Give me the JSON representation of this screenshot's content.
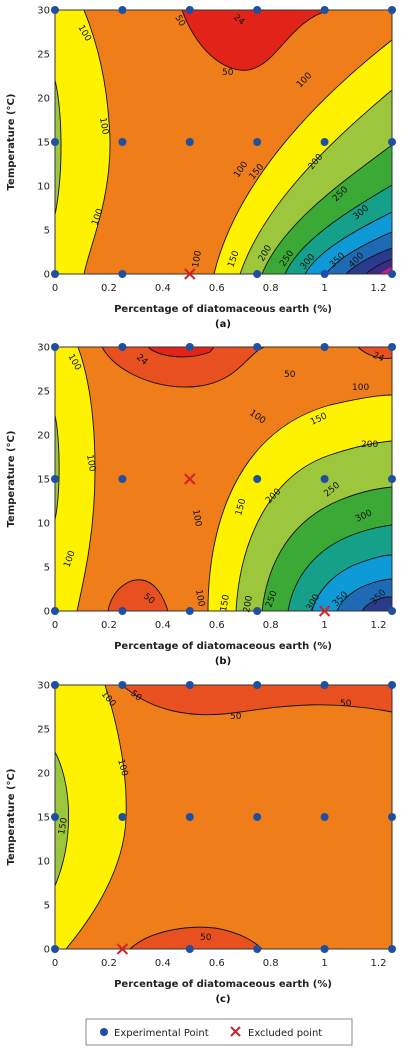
{
  "chart_data": [
    {
      "type": "contour",
      "panel": "(a)",
      "xlabel": "Percentage of diatomaceous earth (%)",
      "ylabel": "Temperature (°C)",
      "xlim": [
        0,
        1.25
      ],
      "ylim": [
        0,
        30
      ],
      "xticks": [
        "0",
        "0.2",
        "0.4",
        "0.6",
        "0.8",
        "1",
        "1.2"
      ],
      "yticks": [
        "0",
        "5",
        "10",
        "15",
        "20",
        "25",
        "30"
      ],
      "contour_levels": [
        "24",
        "50",
        "100",
        "150",
        "200",
        "250",
        "300",
        "350",
        "400"
      ],
      "experimental_points": [
        [
          0,
          0
        ],
        [
          0.25,
          0
        ],
        [
          0.75,
          0
        ],
        [
          1,
          0
        ],
        [
          1.25,
          0
        ],
        [
          0,
          15
        ],
        [
          0.25,
          15
        ],
        [
          0.5,
          15
        ],
        [
          0.75,
          15
        ],
        [
          1,
          15
        ],
        [
          1.25,
          15
        ],
        [
          0,
          30
        ],
        [
          0.25,
          30
        ],
        [
          0.5,
          30
        ],
        [
          0.75,
          30
        ],
        [
          1,
          30
        ],
        [
          1.25,
          30
        ]
      ],
      "excluded_points": [
        [
          0.5,
          0
        ]
      ]
    },
    {
      "type": "contour",
      "panel": "(b)",
      "xlabel": "Percentage of diatomaceous earth (%)",
      "ylabel": "Temperature (°C)",
      "xlim": [
        0,
        1.25
      ],
      "ylim": [
        0,
        30
      ],
      "xticks": [
        "0",
        "0.2",
        "0.4",
        "0.6",
        "0.8",
        "1",
        "1.2"
      ],
      "yticks": [
        "0",
        "5",
        "10",
        "15",
        "20",
        "25",
        "30"
      ],
      "contour_levels": [
        "24",
        "50",
        "100",
        "150",
        "200",
        "250",
        "300",
        "350"
      ],
      "experimental_points": [
        [
          0,
          0
        ],
        [
          0.25,
          0
        ],
        [
          0.5,
          0
        ],
        [
          0.75,
          0
        ],
        [
          1.25,
          0
        ],
        [
          0,
          15
        ],
        [
          0.25,
          15
        ],
        [
          0.75,
          15
        ],
        [
          1,
          15
        ],
        [
          1.25,
          15
        ],
        [
          0,
          30
        ],
        [
          0.25,
          30
        ],
        [
          0.5,
          30
        ],
        [
          0.75,
          30
        ],
        [
          1,
          30
        ],
        [
          1.25,
          30
        ]
      ],
      "excluded_points": [
        [
          0.5,
          15
        ],
        [
          1,
          0
        ]
      ]
    },
    {
      "type": "contour",
      "panel": "(c)",
      "xlabel": "Percentage of diatomaceous earth (%)",
      "ylabel": "Temperature (°C)",
      "xlim": [
        0,
        1.25
      ],
      "ylim": [
        0,
        30
      ],
      "xticks": [
        "0",
        "0.2",
        "0.4",
        "0.6",
        "0.8",
        "1",
        "1.2"
      ],
      "yticks": [
        "0",
        "5",
        "10",
        "15",
        "20",
        "25",
        "30"
      ],
      "contour_levels": [
        "50",
        "100",
        "150"
      ],
      "experimental_points": [
        [
          0,
          0
        ],
        [
          0.5,
          0
        ],
        [
          0.75,
          0
        ],
        [
          1,
          0
        ],
        [
          1.25,
          0
        ],
        [
          0,
          15
        ],
        [
          0.25,
          15
        ],
        [
          0.5,
          15
        ],
        [
          0.75,
          15
        ],
        [
          1,
          15
        ],
        [
          1.25,
          15
        ],
        [
          0,
          30
        ],
        [
          0.25,
          30
        ],
        [
          0.5,
          30
        ],
        [
          0.75,
          30
        ],
        [
          1,
          30
        ],
        [
          1.25,
          30
        ]
      ],
      "excluded_points": [
        [
          0.25,
          0
        ]
      ]
    }
  ],
  "legend": {
    "experimental": "Experimental Point",
    "excluded": "Excluded point"
  },
  "colors": {
    "orange": "#ef7d1a",
    "yellow": "#fff200",
    "red": "#e2231a",
    "redorange": "#e8501f",
    "light_green": "#9cc73c",
    "green": "#3ba935",
    "teal": "#14a089",
    "cyan": "#0e9ad7",
    "blue": "#1f6ab4",
    "navy": "#2a3a8c",
    "indigo": "#3b2b84",
    "magenta": "#c51d84",
    "point": "#1f4fa1",
    "excluded": "#d2232a"
  }
}
